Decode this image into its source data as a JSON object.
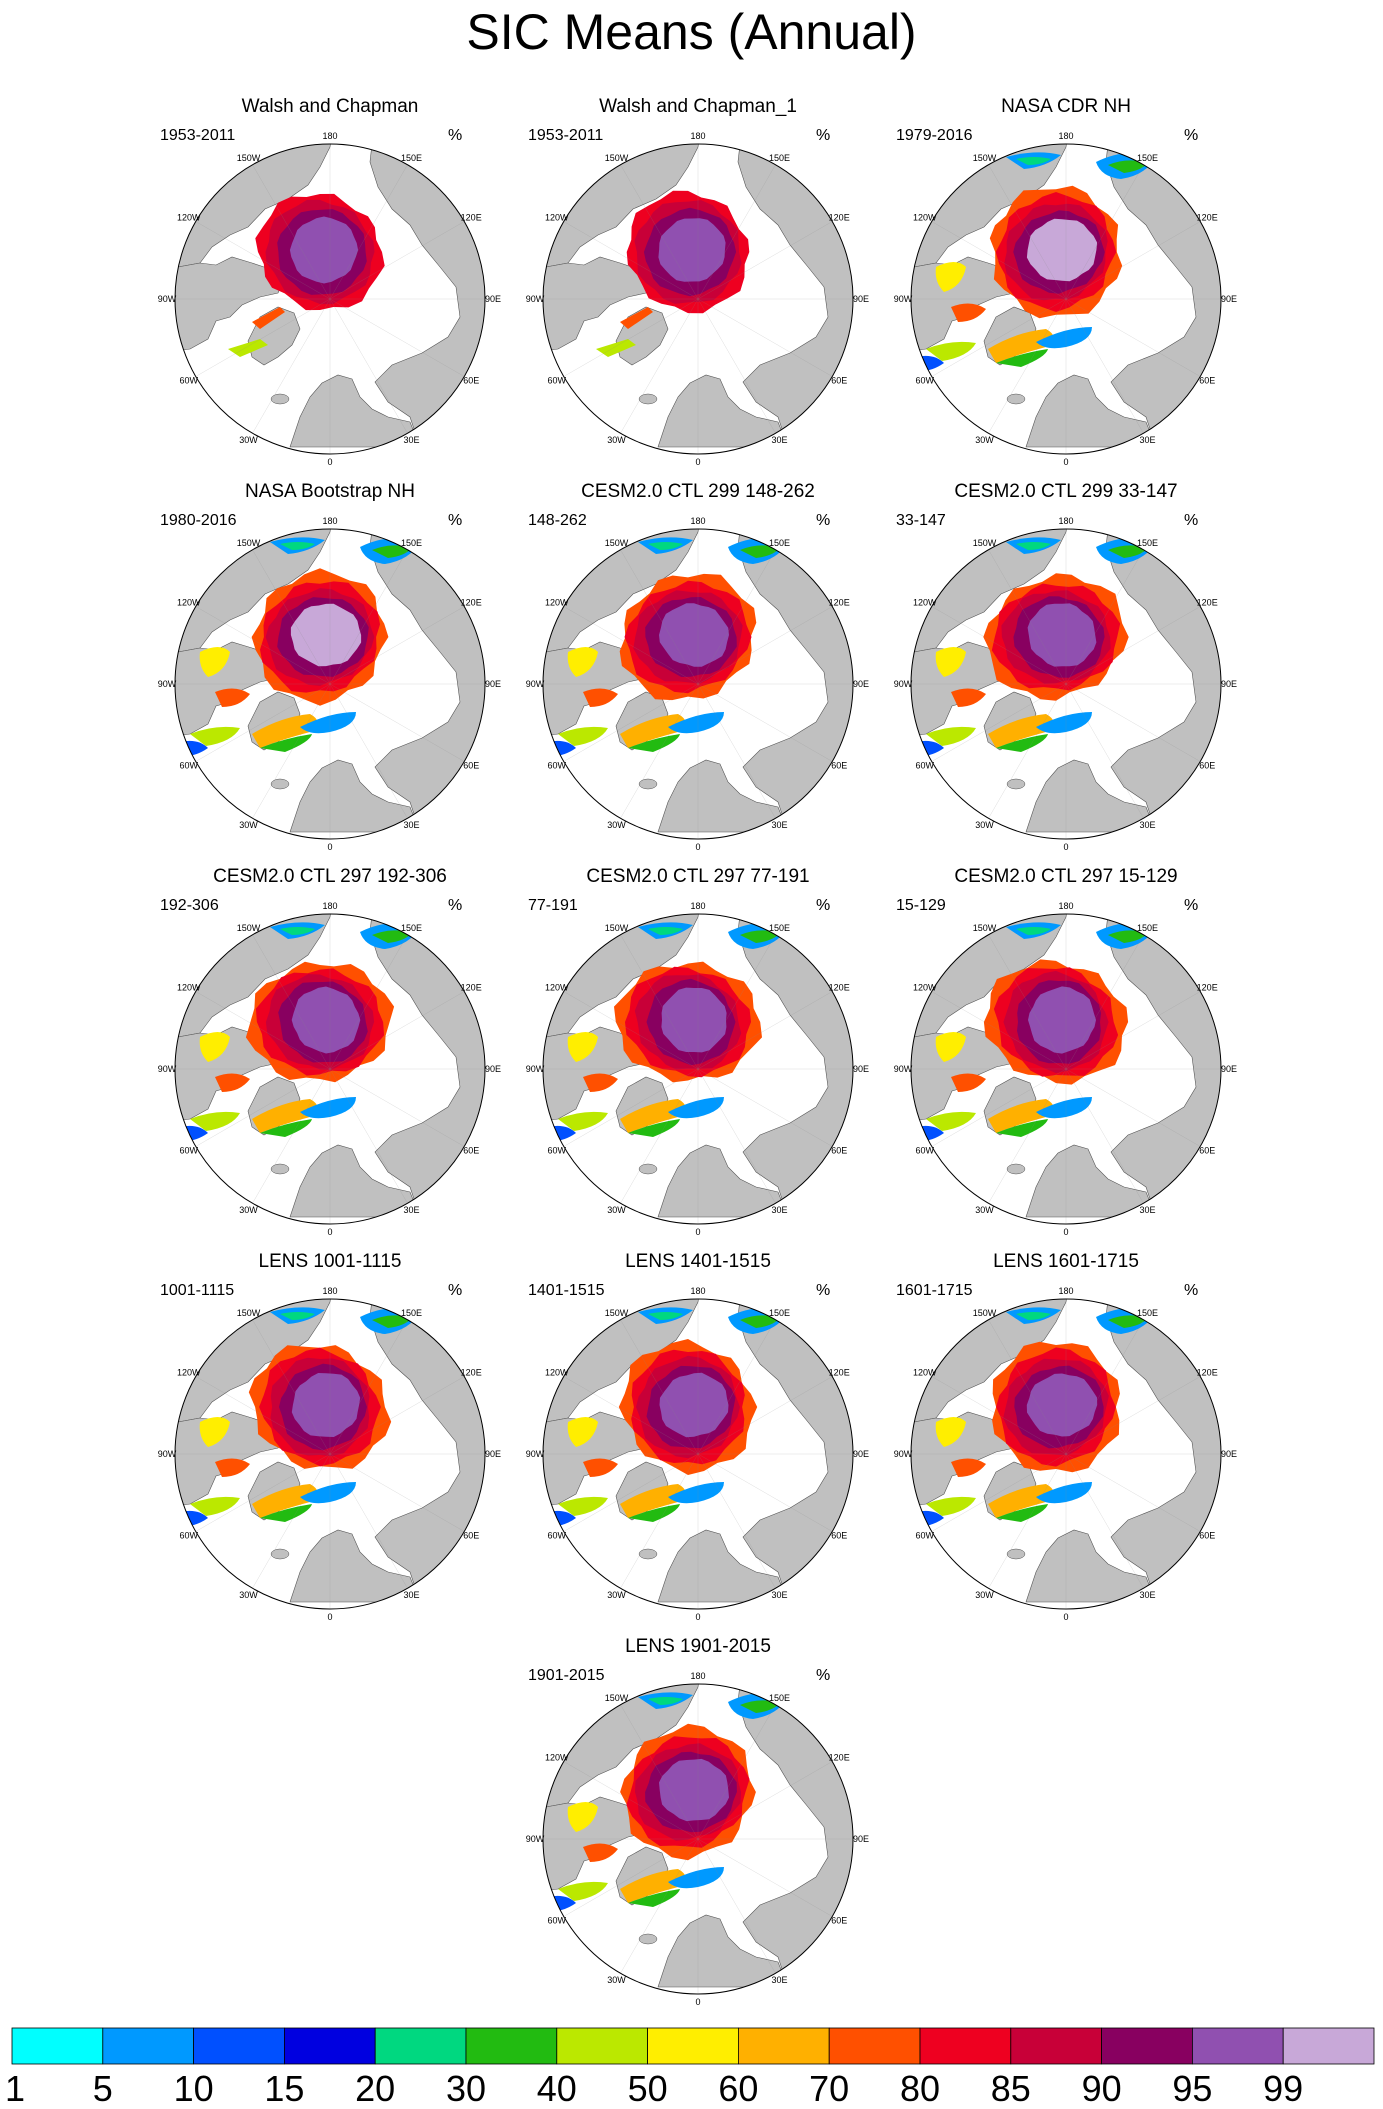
{
  "title": "SIC Means (Annual)",
  "units": "%",
  "longitude_labels": [
    "180",
    "150E",
    "120E",
    "90E",
    "60E",
    "30E",
    "0",
    "30W",
    "60W",
    "90W",
    "120W",
    "150W"
  ],
  "panels": [
    {
      "title": "Walsh and Chapman",
      "period": "1953-2011",
      "ice_type": "obs_wc"
    },
    {
      "title": "Walsh and Chapman_1",
      "period": "1953-2011",
      "ice_type": "obs_wc"
    },
    {
      "title": "NASA CDR NH",
      "period": "1979-2016",
      "ice_type": "obs_sat"
    },
    {
      "title": "NASA Bootstrap NH",
      "period": "1980-2016",
      "ice_type": "obs_sat"
    },
    {
      "title": "CESM2.0 CTL 299 148-262",
      "period": "148-262",
      "ice_type": "model"
    },
    {
      "title": "CESM2.0 CTL 299 33-147",
      "period": "33-147",
      "ice_type": "model"
    },
    {
      "title": "CESM2.0 CTL 297 192-306",
      "period": "192-306",
      "ice_type": "model"
    },
    {
      "title": "CESM2.0 CTL 297 77-191",
      "period": "77-191",
      "ice_type": "model"
    },
    {
      "title": "CESM2.0 CTL 297 15-129",
      "period": "15-129",
      "ice_type": "model"
    },
    {
      "title": "LENS 1001-1115",
      "period": "1001-1115",
      "ice_type": "lens"
    },
    {
      "title": "LENS 1401-1515",
      "period": "1401-1515",
      "ice_type": "lens"
    },
    {
      "title": "LENS 1601-1715",
      "period": "1601-1715",
      "ice_type": "lens"
    },
    {
      "title": "LENS 1901-2015",
      "period": "1901-2015",
      "ice_type": "lens"
    }
  ],
  "colorbar": {
    "labels": [
      "1",
      "5",
      "10",
      "15",
      "20",
      "30",
      "40",
      "50",
      "60",
      "70",
      "80",
      "85",
      "90",
      "95",
      "99"
    ],
    "colors": [
      "#00ffff",
      "#0099ff",
      "#0050ff",
      "#0000e0",
      "#00d880",
      "#22bb11",
      "#bbe800",
      "#ffee00",
      "#ffb000",
      "#ff5000",
      "#ee0020",
      "#c80038",
      "#880060",
      "#9050b0",
      "#c8a8d8"
    ]
  },
  "map_colors": {
    "land": "#c0c0c0",
    "ocean": "#ffffff",
    "coast": "#555555"
  }
}
